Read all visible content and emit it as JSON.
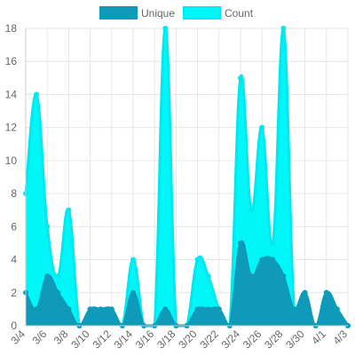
{
  "chart_data": {
    "type": "area",
    "x": [
      "3/4",
      "3/5",
      "3/6",
      "3/7",
      "3/8",
      "3/9",
      "3/10",
      "3/11",
      "3/12",
      "3/13",
      "3/14",
      "3/15",
      "3/16",
      "3/17",
      "3/18",
      "3/19",
      "3/20",
      "3/21",
      "3/22",
      "3/23",
      "3/24",
      "3/25",
      "3/26",
      "3/27",
      "3/28",
      "3/29",
      "3/30",
      "3/31",
      "4/1",
      "4/2",
      "4/3"
    ],
    "x_tick_labels": [
      "3/4",
      "3/6",
      "3/8",
      "3/10",
      "3/12",
      "3/14",
      "3/16",
      "3/18",
      "3/20",
      "3/22",
      "3/24",
      "3/26",
      "3/28",
      "3/30",
      "4/1",
      "4/3"
    ],
    "series": [
      {
        "name": "Unique",
        "color": "#0e9ab8",
        "fill": "#0e9ab8",
        "values": [
          2,
          1,
          3,
          2,
          1,
          0,
          1,
          1,
          1,
          0,
          2,
          0,
          0,
          1,
          0,
          0,
          1,
          1,
          1,
          0,
          5,
          3,
          4,
          4,
          3,
          1,
          2,
          0,
          2,
          1,
          0
        ]
      },
      {
        "name": "Count",
        "color": "#00e8f0",
        "fill": "#00f7fa",
        "values": [
          8,
          14,
          6,
          3,
          7,
          0,
          1,
          1,
          1,
          0,
          4,
          0,
          0,
          18,
          0,
          0,
          4,
          3,
          1,
          0,
          15,
          7,
          12,
          5,
          18,
          1,
          2,
          0,
          2,
          1,
          0
        ]
      }
    ],
    "ylim": [
      0,
      18
    ],
    "y_ticks": [
      0,
      2,
      4,
      6,
      8,
      10,
      12,
      14,
      16,
      18
    ],
    "grid": true,
    "legend": "top"
  }
}
